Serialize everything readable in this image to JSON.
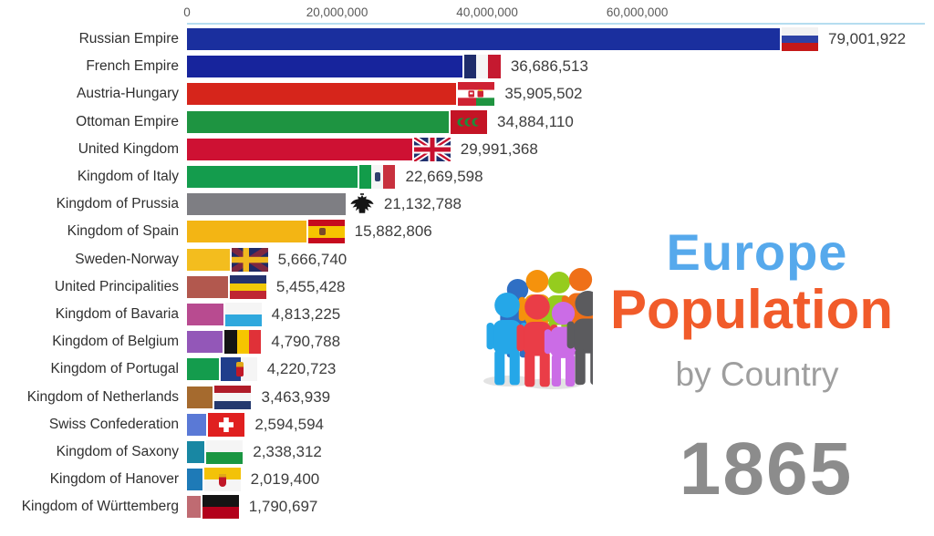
{
  "title": {
    "line1": "Europe",
    "line2": "Population",
    "line3": "by Country"
  },
  "year": "1865",
  "colors": {
    "title_line1": "#56a9ec",
    "title_line2": "#f15b2a",
    "title_line3": "#9e9e9e",
    "year": "#8c8c8c",
    "axis_line": "#b5ddf0",
    "axis_text": "#5a5a5a",
    "value_text": "#3d3d3d",
    "label_text": "#2f2f2f"
  },
  "chart_data": {
    "type": "bar",
    "orientation": "horizontal",
    "title": "Europe Population by Country",
    "subtitle_year": "1865",
    "grid": false,
    "x_axis": {
      "tick_labels": [
        "0",
        "20,000,000",
        "40,000,000",
        "60,000,000"
      ],
      "tick_values": [
        0,
        20000000,
        40000000,
        60000000
      ],
      "xlim": [
        0,
        79001922
      ]
    },
    "categories": [
      "Russian Empire",
      "French Empire",
      "Austria-Hungary",
      "Ottoman Empire",
      "United Kingdom",
      "Kingdom of Italy",
      "Kingdom of Prussia",
      "Kingdom of Spain",
      "Sweden-Norway",
      "United Principalities",
      "Kingdom of Bavaria",
      "Kingdom of Belgium",
      "Kingdom of Portugal",
      "Kingdom of Netherlands",
      "Swiss Confederation",
      "Kingdom of Saxony",
      "Kingdom of Hanover",
      "Kingdom of Württemberg"
    ],
    "values": [
      79001922,
      36686513,
      35905502,
      34884110,
      29991368,
      22669598,
      21132788,
      15882806,
      5666740,
      5455428,
      4813225,
      4790788,
      4220723,
      3463939,
      2594594,
      2338312,
      2019400,
      1790697
    ],
    "value_labels": [
      "79,001,922",
      "36,686,513",
      "35,905,502",
      "34,884,110",
      "29,991,368",
      "22,669,598",
      "21,132,788",
      "15,882,806",
      "5,666,740",
      "5,455,428",
      "4,813,225",
      "4,790,788",
      "4,220,723",
      "3,463,939",
      "2,594,594",
      "2,338,312",
      "2,019,400",
      "1,790,697"
    ],
    "bar_colors": [
      "#1a2f9e",
      "#17249c",
      "#d6251b",
      "#1e9441",
      "#ce1133",
      "#149c4d",
      "#7e7e83",
      "#f3b514",
      "#f3bd1e",
      "#b2584e",
      "#b84b90",
      "#9357b8",
      "#149c4d",
      "#a56a2e",
      "#5a79d6",
      "#1887a3",
      "#1e7ab7",
      "#bf6b72"
    ],
    "flags": [
      {
        "name": "russia-flag",
        "dir": "h",
        "stripes": [
          "#f2f2f2",
          "#2e42a5",
          "#c51918"
        ]
      },
      {
        "name": "france-flag",
        "dir": "v",
        "stripes": [
          "#1f2c6b",
          "#f5f5f5",
          "#c51930"
        ]
      },
      {
        "name": "austria-hungary-flag",
        "custom": "austria-hungary"
      },
      {
        "name": "ottoman-flag",
        "custom": "ottoman"
      },
      {
        "name": "united-kingdom-flag",
        "custom": "union-jack"
      },
      {
        "name": "italy-flag",
        "dir": "v",
        "stripes": [
          "#129c4a",
          "#f5f5f5",
          "#c8313e"
        ],
        "overlay": "crest-dark"
      },
      {
        "name": "prussia-eagle",
        "custom": "prussian-eagle"
      },
      {
        "name": "spain-flag",
        "dir": "h",
        "stripes": [
          "#c60b1e",
          "#f6c500",
          "#c60b1e"
        ],
        "weights": [
          1,
          2,
          1
        ],
        "overlay": "crest-spain"
      },
      {
        "name": "sweden-norway-flag",
        "custom": "sweden-norway"
      },
      {
        "name": "united-principalities-flag",
        "dir": "h",
        "stripes": [
          "#24336e",
          "#f0c808",
          "#bf2633"
        ]
      },
      {
        "name": "bavaria-flag",
        "dir": "h",
        "stripes": [
          "#f5f5f5",
          "#2fa8dd"
        ]
      },
      {
        "name": "belgium-flag",
        "dir": "v",
        "stripes": [
          "#141414",
          "#f6c500",
          "#e03138"
        ]
      },
      {
        "name": "portugal-flag",
        "dir": "v",
        "stripes": [
          "#203e8c",
          "#f5f5f5"
        ],
        "weights": [
          55,
          45
        ],
        "overlay": "crest-portugal"
      },
      {
        "name": "netherlands-flag",
        "dir": "h",
        "stripes": [
          "#b01c29",
          "#f5f5f5",
          "#24396e"
        ]
      },
      {
        "name": "switzerland-flag",
        "custom": "swiss"
      },
      {
        "name": "saxony-flag",
        "dir": "h",
        "stripes": [
          "#f5f5f5",
          "#1a9642"
        ]
      },
      {
        "name": "hanover-flag",
        "dir": "h",
        "stripes": [
          "#f3c208",
          "#f5f5f5"
        ],
        "overlay": "crest-hanover"
      },
      {
        "name": "wurttemberg-flag",
        "dir": "h",
        "stripes": [
          "#141414",
          "#b3001b"
        ]
      }
    ]
  }
}
